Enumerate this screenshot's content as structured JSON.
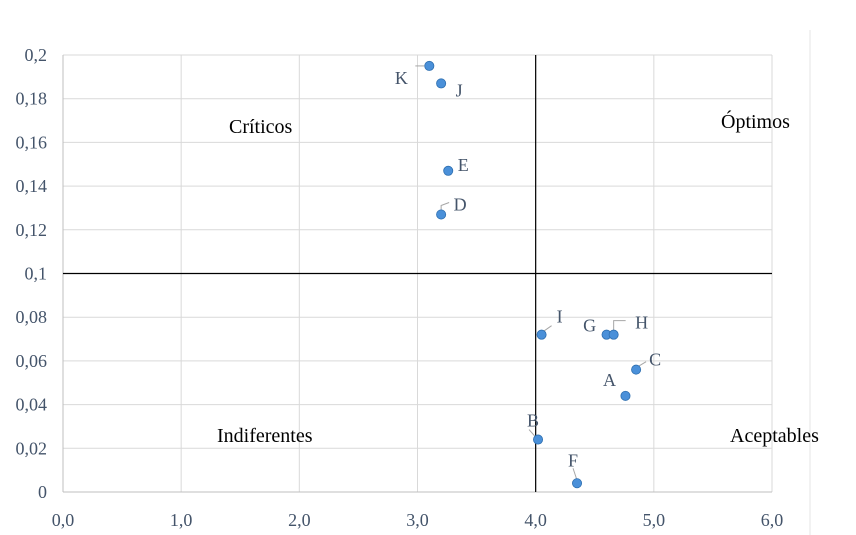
{
  "chart_data": {
    "type": "scatter",
    "title": "",
    "xlabel": "",
    "ylabel": "",
    "xlim": [
      0,
      6
    ],
    "ylim": [
      0,
      0.2
    ],
    "x_ticks": [
      "0,0",
      "1,0",
      "2,0",
      "3,0",
      "4,0",
      "5,0",
      "6,0"
    ],
    "y_ticks": [
      "0",
      "0,02",
      "0,04",
      "0,06",
      "0,08",
      "0,1",
      "0,12",
      "0,14",
      "0,16",
      "0,18",
      "0,2"
    ],
    "grid": true,
    "reference_lines": {
      "x": 4.0,
      "y": 0.1
    },
    "point_color": "#4a90d9",
    "points": [
      {
        "label": "K",
        "x": 3.1,
        "y": 0.195
      },
      {
        "label": "J",
        "x": 3.2,
        "y": 0.187
      },
      {
        "label": "E",
        "x": 3.26,
        "y": 0.147
      },
      {
        "label": "D",
        "x": 3.2,
        "y": 0.127
      },
      {
        "label": "I",
        "x": 4.05,
        "y": 0.072
      },
      {
        "label": "G",
        "x": 4.6,
        "y": 0.072
      },
      {
        "label": "H",
        "x": 4.66,
        "y": 0.072
      },
      {
        "label": "C",
        "x": 4.85,
        "y": 0.056
      },
      {
        "label": "A",
        "x": 4.76,
        "y": 0.044
      },
      {
        "label": "B",
        "x": 4.02,
        "y": 0.024
      },
      {
        "label": "F",
        "x": 4.35,
        "y": 0.004
      }
    ],
    "quadrant_labels": [
      "Críticos",
      "Óptimos",
      "Indiferentes",
      "Aceptables"
    ]
  }
}
